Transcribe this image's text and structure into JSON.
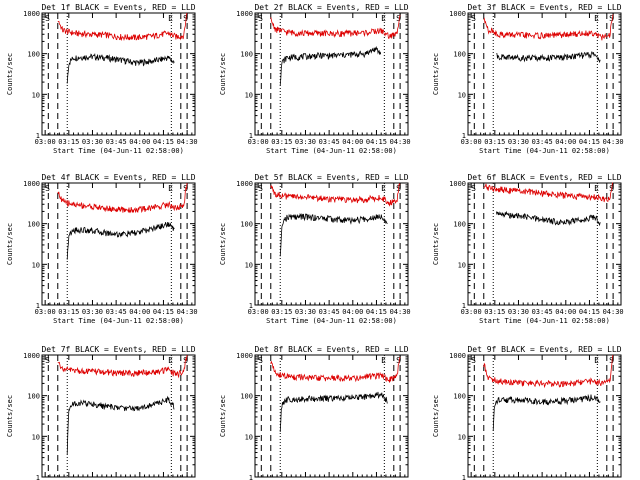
{
  "figure": {
    "panel_titles": [
      "Det 1f BLACK = Events, RED = LLD",
      "Det 2f BLACK = Events, RED = LLD",
      "Det 3f BLACK = Events, RED = LLD",
      "Det 4f BLACK = Events, RED = LLD",
      "Det 5f BLACK = Events, RED = LLD",
      "Det 6f BLACK = Events, RED = LLD",
      "Det 7f BLACK = Events, RED = LLD",
      "Det 8f BLACK = Events, RED = LLD",
      "Det 9f BLACK = Events, RED = LLD"
    ],
    "xlabel": "Start Time (04-Jun-11 02:58:00)",
    "ylabel": "Counts/sec",
    "xticks": [
      "03:00",
      "03:15",
      "03:30",
      "03:45",
      "04:00",
      "04:15",
      "04:30"
    ],
    "yticks": [
      "1",
      "10",
      "100",
      "1000"
    ],
    "markers": {
      "start": "S",
      "end": "E"
    }
  },
  "colors": {
    "events": "#000000",
    "lld": "#dd0000"
  },
  "chart_data": [
    {
      "type": "line",
      "title": "Det 1f BLACK = Events, RED = LLD",
      "xlabel": "Start Time (04-Jun-11 02:58:00)",
      "ylabel": "Counts/sec",
      "yscale": "log",
      "ylim": [
        1,
        1000
      ],
      "xlim_minutes": [
        0,
        97
      ],
      "x_minutes": [
        10,
        13,
        20,
        30,
        40,
        50,
        60,
        70,
        80,
        85,
        90,
        91,
        92
      ],
      "series": [
        {
          "name": "BLACK = Events",
          "x_minutes": [
            16,
            17,
            20,
            30,
            40,
            50,
            60,
            70,
            80,
            84
          ],
          "values": [
            20,
            60,
            80,
            85,
            80,
            70,
            60,
            65,
            80,
            60
          ]
        },
        {
          "name": "RED = LLD",
          "x_minutes": [
            10,
            13,
            20,
            30,
            40,
            50,
            60,
            70,
            80,
            85,
            90,
            91,
            92
          ],
          "values": [
            700,
            380,
            320,
            300,
            290,
            260,
            250,
            270,
            320,
            260,
            280,
            600,
            1100
          ]
        }
      ]
    },
    {
      "type": "line",
      "title": "Det 2f BLACK = Events, RED = LLD",
      "xlabel": "Start Time (04-Jun-11 02:58:00)",
      "ylabel": "Counts/sec",
      "yscale": "log",
      "ylim": [
        1,
        1000
      ],
      "xlim_minutes": [
        0,
        97
      ],
      "series": [
        {
          "name": "BLACK = Events",
          "x_minutes": [
            16,
            17,
            20,
            30,
            40,
            50,
            60,
            70,
            76,
            80
          ],
          "values": [
            20,
            60,
            80,
            85,
            90,
            90,
            95,
            100,
            130,
            100
          ]
        },
        {
          "name": "RED = LLD",
          "x_minutes": [
            10,
            13,
            20,
            30,
            40,
            50,
            60,
            70,
            80,
            85,
            90,
            91,
            92
          ],
          "values": [
            700,
            400,
            340,
            320,
            320,
            310,
            320,
            330,
            370,
            270,
            300,
            600,
            1100
          ]
        }
      ]
    },
    {
      "type": "line",
      "title": "Det 3f BLACK = Events, RED = LLD",
      "xlabel": "Start Time (04-Jun-11 02:58:00)",
      "ylabel": "Counts/sec",
      "yscale": "log",
      "ylim": [
        1,
        1000
      ],
      "xlim_minutes": [
        0,
        97
      ],
      "series": [
        {
          "name": "BLACK = Events",
          "x_minutes": [
            18,
            20,
            30,
            40,
            50,
            60,
            70,
            80,
            84
          ],
          "values": [
            90,
            85,
            80,
            80,
            80,
            80,
            90,
            95,
            70
          ]
        },
        {
          "name": "RED = LLD",
          "x_minutes": [
            10,
            13,
            20,
            30,
            40,
            50,
            60,
            70,
            80,
            85,
            90,
            91,
            92
          ],
          "values": [
            700,
            380,
            300,
            290,
            280,
            280,
            290,
            310,
            330,
            250,
            280,
            600,
            1100
          ]
        }
      ]
    },
    {
      "type": "line",
      "title": "Det 4f BLACK = Events, RED = LLD",
      "xlabel": "Start Time (04-Jun-11 02:58:00)",
      "ylabel": "Counts/sec",
      "yscale": "log",
      "ylim": [
        1,
        1000
      ],
      "xlim_minutes": [
        0,
        97
      ],
      "series": [
        {
          "name": "BLACK = Events",
          "x_minutes": [
            16,
            17,
            20,
            30,
            40,
            50,
            60,
            70,
            80,
            84
          ],
          "values": [
            15,
            50,
            70,
            70,
            60,
            55,
            60,
            75,
            100,
            70
          ]
        },
        {
          "name": "RED = LLD",
          "x_minutes": [
            10,
            13,
            20,
            30,
            40,
            50,
            60,
            70,
            80,
            85,
            90,
            91,
            92
          ],
          "values": [
            600,
            350,
            300,
            270,
            240,
            220,
            220,
            250,
            300,
            240,
            280,
            600,
            1100
          ]
        }
      ]
    },
    {
      "type": "line",
      "title": "Det 5f BLACK = Events, RED = LLD",
      "xlabel": "Start Time (04-Jun-11 02:58:00)",
      "ylabel": "Counts/sec",
      "yscale": "log",
      "ylim": [
        1,
        1000
      ],
      "xlim_minutes": [
        0,
        97
      ],
      "series": [
        {
          "name": "BLACK = Events",
          "x_minutes": [
            16,
            17,
            20,
            30,
            40,
            50,
            60,
            70,
            80,
            84
          ],
          "values": [
            15,
            100,
            140,
            150,
            140,
            130,
            120,
            130,
            160,
            110
          ]
        },
        {
          "name": "RED = LLD",
          "x_minutes": [
            10,
            13,
            20,
            30,
            40,
            50,
            60,
            70,
            80,
            85,
            90,
            91,
            92
          ],
          "values": [
            800,
            550,
            470,
            460,
            430,
            400,
            380,
            400,
            450,
            330,
            380,
            700,
            1100
          ]
        }
      ]
    },
    {
      "type": "line",
      "title": "Det 6f BLACK = Events, RED = LLD",
      "xlabel": "Start Time (04-Jun-11 02:58:00)",
      "ylabel": "Counts/sec",
      "yscale": "log",
      "ylim": [
        1,
        1000
      ],
      "xlim_minutes": [
        0,
        97
      ],
      "series": [
        {
          "name": "BLACK = Events",
          "x_minutes": [
            18,
            20,
            30,
            40,
            50,
            60,
            70,
            80,
            84
          ],
          "values": [
            170,
            170,
            160,
            140,
            120,
            110,
            120,
            150,
            100
          ]
        },
        {
          "name": "RED = LLD",
          "x_minutes": [
            10,
            13,
            20,
            30,
            40,
            50,
            60,
            70,
            80,
            85,
            90,
            91,
            92
          ],
          "values": [
            900,
            750,
            700,
            650,
            600,
            550,
            500,
            470,
            450,
            420,
            380,
            700,
            1100
          ]
        }
      ]
    },
    {
      "type": "line",
      "title": "Det 7f BLACK = Events, RED = LLD",
      "xlabel": "Start Time (04-Jun-11 02:58:00)",
      "ylabel": "Counts/sec",
      "yscale": "log",
      "ylim": [
        1,
        1000
      ],
      "xlim_minutes": [
        0,
        97
      ],
      "series": [
        {
          "name": "BLACK = Events",
          "x_minutes": [
            16,
            17,
            20,
            30,
            40,
            50,
            60,
            70,
            80,
            84
          ],
          "values": [
            4,
            50,
            65,
            65,
            55,
            50,
            50,
            60,
            80,
            55
          ]
        },
        {
          "name": "RED = LLD",
          "x_minutes": [
            10,
            13,
            20,
            30,
            40,
            50,
            60,
            70,
            80,
            85,
            90,
            91,
            92
          ],
          "values": [
            700,
            450,
            420,
            400,
            380,
            360,
            360,
            380,
            430,
            330,
            380,
            700,
            1100
          ]
        }
      ]
    },
    {
      "type": "line",
      "title": "Det 8f BLACK = Events, RED = LLD",
      "xlabel": "Start Time (04-Jun-11 02:58:00)",
      "ylabel": "Counts/sec",
      "yscale": "log",
      "ylim": [
        1,
        1000
      ],
      "xlim_minutes": [
        0,
        97
      ],
      "series": [
        {
          "name": "BLACK = Events",
          "x_minutes": [
            16,
            17,
            20,
            30,
            40,
            50,
            60,
            70,
            80,
            84
          ],
          "values": [
            15,
            60,
            80,
            85,
            85,
            85,
            90,
            95,
            110,
            75
          ]
        },
        {
          "name": "RED = LLD",
          "x_minutes": [
            10,
            13,
            20,
            30,
            40,
            50,
            60,
            70,
            80,
            85,
            90,
            91,
            92
          ],
          "values": [
            700,
            350,
            300,
            280,
            270,
            270,
            270,
            290,
            320,
            250,
            280,
            600,
            1100
          ]
        }
      ]
    },
    {
      "type": "line",
      "title": "Det 9f BLACK = Events, RED = LLD",
      "xlabel": "Start Time (04-Jun-11 02:58:00)",
      "ylabel": "Counts/sec",
      "yscale": "log",
      "ylim": [
        1,
        1000
      ],
      "xlim_minutes": [
        0,
        97
      ],
      "series": [
        {
          "name": "BLACK = Events",
          "x_minutes": [
            16,
            17,
            20,
            30,
            40,
            50,
            60,
            70,
            80,
            84
          ],
          "values": [
            15,
            65,
            80,
            80,
            75,
            70,
            75,
            80,
            95,
            70
          ]
        },
        {
          "name": "RED = LLD",
          "x_minutes": [
            10,
            13,
            20,
            30,
            40,
            50,
            60,
            70,
            80,
            85,
            90,
            91,
            92
          ],
          "values": [
            600,
            280,
            230,
            210,
            200,
            200,
            200,
            210,
            230,
            200,
            220,
            600,
            1100
          ]
        }
      ]
    }
  ]
}
